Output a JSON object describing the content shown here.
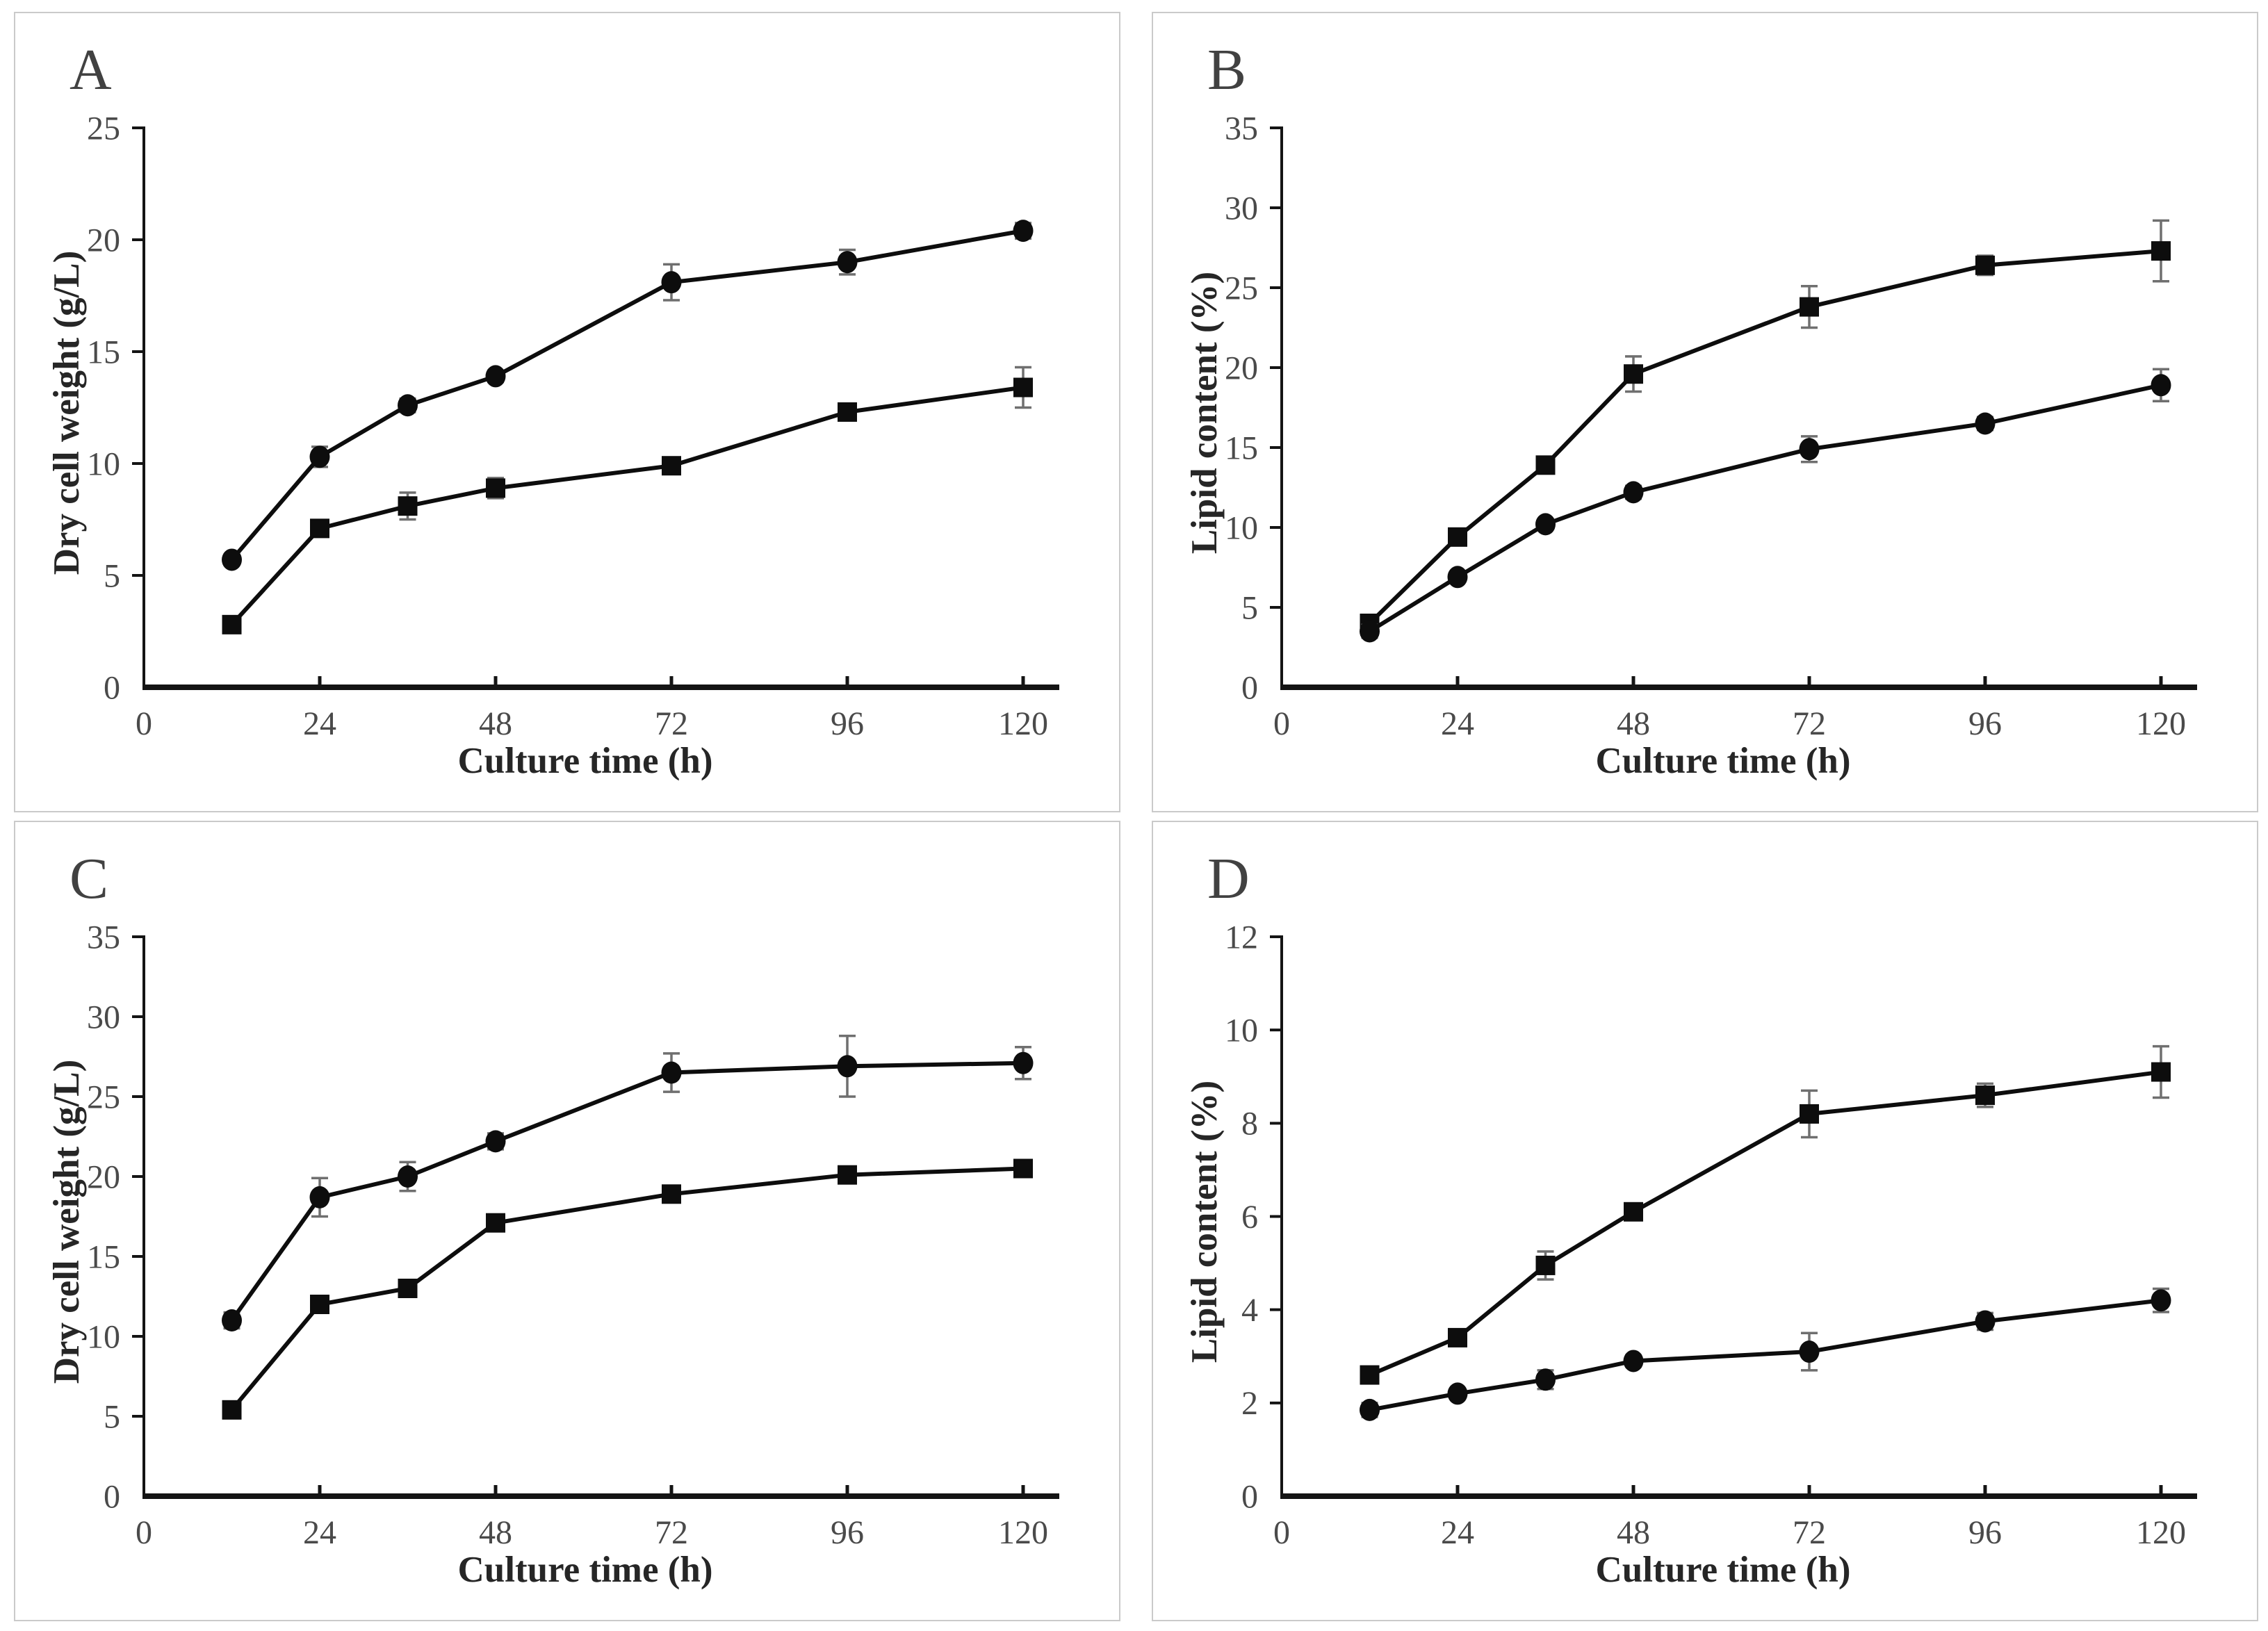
{
  "colors": {
    "background": "#ffffff",
    "panel_border": "#cacaca",
    "axis": "#141414",
    "tick_label": "#4a4a4a",
    "axis_title": "#262626",
    "panel_letter": "#414141",
    "series": "#0d0d0d",
    "error_bar": "#6f6f6f"
  },
  "chart_data": [
    {
      "panel_label": "A",
      "type": "line",
      "xlabel": "Culture time (h)",
      "ylabel": "Dry cell weight (g/L)",
      "xlim": [
        0,
        126
      ],
      "ylim": [
        0,
        25
      ],
      "xticks": [
        0,
        24,
        48,
        72,
        96,
        120
      ],
      "yticks": [
        0,
        5,
        10,
        15,
        20,
        25
      ],
      "grid": false,
      "legend": "none",
      "x": [
        12,
        24,
        36,
        48,
        72,
        96,
        120
      ],
      "series": [
        {
          "name": "dry-cell-weight-circle",
          "marker": "circle",
          "values": [
            5.7,
            10.3,
            12.6,
            13.9,
            18.1,
            19.0,
            20.4
          ],
          "errors": [
            0.2,
            0.45,
            0.3,
            0.25,
            0.8,
            0.55,
            0.35
          ]
        },
        {
          "name": "dry-cell-weight-square",
          "marker": "square",
          "values": [
            2.8,
            7.1,
            8.1,
            8.9,
            9.9,
            12.3,
            13.4
          ],
          "errors": [
            0.2,
            0.2,
            0.6,
            0.45,
            0.3,
            0.35,
            0.9
          ]
        }
      ]
    },
    {
      "panel_label": "B",
      "type": "line",
      "xlabel": "Culture time (h)",
      "ylabel": "Lipid content (%)",
      "xlim": [
        0,
        126
      ],
      "ylim": [
        0,
        35
      ],
      "xticks": [
        0,
        24,
        48,
        72,
        96,
        120
      ],
      "yticks": [
        0,
        5,
        10,
        15,
        20,
        25,
        30,
        35
      ],
      "grid": false,
      "legend": "none",
      "x": [
        12,
        24,
        36,
        48,
        72,
        96,
        120
      ],
      "series": [
        {
          "name": "lipid-content-square",
          "marker": "square",
          "values": [
            4.0,
            9.4,
            13.9,
            19.6,
            23.8,
            26.4,
            27.3
          ],
          "errors": [
            0.5,
            0.4,
            0.45,
            1.1,
            1.3,
            0.6,
            1.9
          ]
        },
        {
          "name": "lipid-content-circle",
          "marker": "circle",
          "values": [
            3.5,
            6.9,
            10.2,
            12.2,
            14.9,
            16.5,
            18.9
          ],
          "errors": [
            0.4,
            0.3,
            0.3,
            0.4,
            0.8,
            0.4,
            1.0
          ]
        }
      ]
    },
    {
      "panel_label": "C",
      "type": "line",
      "xlabel": "Culture time (h)",
      "ylabel": "Dry cell weight (g/L)",
      "xlim": [
        0,
        126
      ],
      "ylim": [
        0,
        35
      ],
      "xticks": [
        0,
        24,
        48,
        72,
        96,
        120
      ],
      "yticks": [
        0,
        5,
        10,
        15,
        20,
        25,
        30,
        35
      ],
      "grid": false,
      "legend": "none",
      "x": [
        12,
        24,
        36,
        48,
        72,
        96,
        120
      ],
      "series": [
        {
          "name": "dry-cell-weight-circle",
          "marker": "circle",
          "values": [
            11.0,
            18.7,
            20.0,
            22.2,
            26.5,
            26.9,
            27.1
          ],
          "errors": [
            0.5,
            1.2,
            0.9,
            0.5,
            1.2,
            1.9,
            1.0
          ]
        },
        {
          "name": "dry-cell-weight-square",
          "marker": "square",
          "values": [
            5.4,
            12.0,
            13.0,
            17.1,
            18.9,
            20.1,
            20.5
          ],
          "errors": [
            0.3,
            0.4,
            0.45,
            0.3,
            0.5,
            0.5,
            0.4
          ]
        }
      ]
    },
    {
      "panel_label": "D",
      "type": "line",
      "xlabel": "Culture time (h)",
      "ylabel": "Lipid content (%)",
      "xlim": [
        0,
        126
      ],
      "ylim": [
        0,
        12
      ],
      "xticks": [
        0,
        24,
        48,
        72,
        96,
        120
      ],
      "yticks": [
        0,
        2,
        4,
        6,
        8,
        10,
        12
      ],
      "grid": false,
      "legend": "none",
      "x": [
        12,
        24,
        36,
        48,
        72,
        96,
        120
      ],
      "series": [
        {
          "name": "lipid-content-square",
          "marker": "square",
          "values": [
            2.6,
            3.4,
            4.95,
            6.1,
            8.2,
            8.6,
            9.1
          ],
          "errors": [
            0.15,
            0.15,
            0.3,
            0.15,
            0.5,
            0.25,
            0.55
          ]
        },
        {
          "name": "lipid-content-circle",
          "marker": "circle",
          "values": [
            1.85,
            2.2,
            2.5,
            2.9,
            3.1,
            3.75,
            4.2
          ],
          "errors": [
            0.15,
            0.1,
            0.2,
            0.12,
            0.4,
            0.18,
            0.25
          ]
        }
      ]
    }
  ]
}
